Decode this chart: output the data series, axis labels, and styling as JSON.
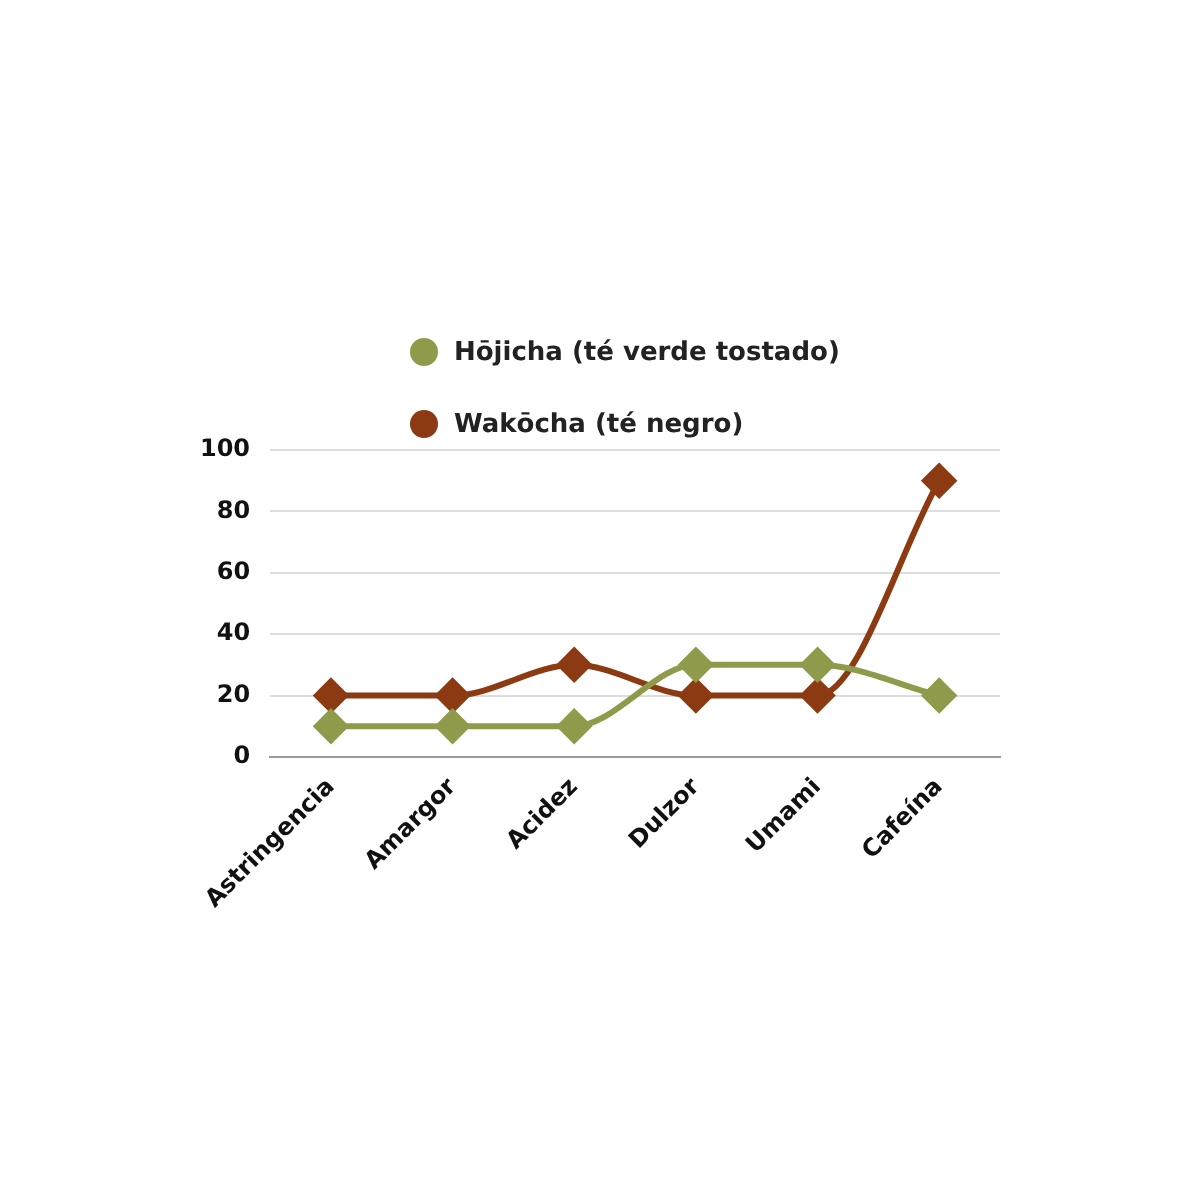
{
  "chart_data": {
    "type": "line",
    "categories": [
      "Astringencia",
      "Amargor",
      "Acidez",
      "Dulzor",
      "Umami",
      "Cafeína"
    ],
    "series": [
      {
        "name": "Hōjicha (té verde tostado)",
        "color": "#8f9b4a",
        "values": [
          10,
          10,
          10,
          30,
          30,
          20
        ]
      },
      {
        "name": "Wakōcha (té negro)",
        "color": "#8b3a12",
        "values": [
          20,
          20,
          30,
          20,
          20,
          90
        ]
      }
    ],
    "ylim": [
      0,
      100
    ],
    "yticks": [
      0,
      20,
      40,
      60,
      80,
      100
    ],
    "grid": "y",
    "legend": "top",
    "marker": "diamond",
    "line_style": "solid"
  }
}
